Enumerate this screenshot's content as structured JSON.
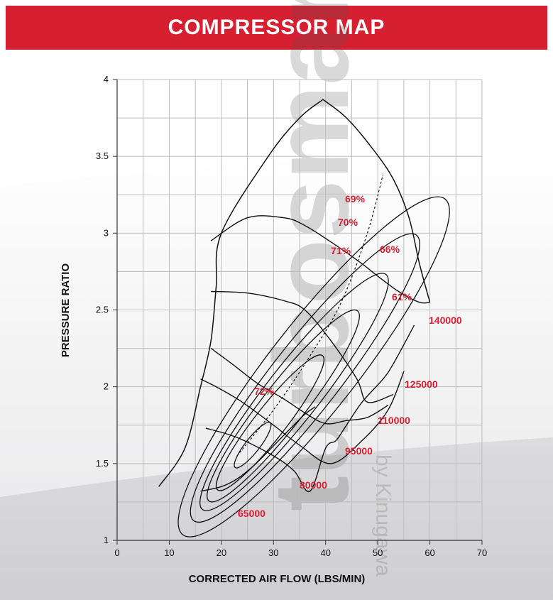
{
  "header": {
    "title": "COMPRESSOR MAP"
  },
  "chart_data": {
    "type": "line",
    "title": "COMPRESSOR MAP",
    "xlabel": "CORRECTED AIR FLOW (LBS/MIN)",
    "ylabel": "PRESSURE RATIO",
    "xlim": [
      0,
      70
    ],
    "ylim": [
      1,
      4
    ],
    "xticks": [
      "0",
      "10",
      "20",
      "30",
      "40",
      "50",
      "60",
      "70"
    ],
    "yticks": [
      "1",
      "1.5",
      "2",
      "2.5",
      "3",
      "3.5",
      "4"
    ],
    "grid": true,
    "watermark": "turbosmart / by Kinugawa",
    "speed_lines": [
      {
        "name": "65000",
        "x": [
          16,
          20,
          23,
          26,
          29,
          33,
          36,
          38
        ],
        "y": [
          1.32,
          1.35,
          1.4,
          1.48,
          1.58,
          1.72,
          1.82,
          1.87
        ]
      },
      {
        "name": "80000",
        "x": [
          17,
          23,
          30,
          34,
          37,
          40,
          42,
          44,
          47,
          51,
          53,
          57
        ],
        "y": [
          1.73,
          1.67,
          1.55,
          1.45,
          1.32,
          1.6,
          1.65,
          1.75,
          1.9,
          2.05,
          2.15,
          2.4
        ]
      },
      {
        "name": "95000",
        "x": [
          16,
          19,
          24,
          30,
          35,
          41,
          47,
          52,
          55
        ],
        "y": [
          2.05,
          2.0,
          1.9,
          1.75,
          1.62,
          1.5,
          1.65,
          1.85,
          2.1
        ]
      },
      {
        "name": "110000",
        "x": [
          18,
          22,
          27,
          32,
          36,
          40,
          44,
          48,
          52
        ],
        "y": [
          2.25,
          2.15,
          2.02,
          1.92,
          1.83,
          1.76,
          1.78,
          1.8,
          1.88
        ]
      },
      {
        "name": "125000",
        "x": [
          18,
          25,
          32,
          36,
          41,
          46,
          48,
          53
        ],
        "y": [
          2.62,
          2.61,
          2.56,
          2.5,
          2.3,
          2.05,
          1.9,
          1.95
        ]
      },
      {
        "name": "140000",
        "x": [
          18,
          25,
          32,
          36,
          42,
          47,
          50,
          54,
          58,
          60
        ],
        "y": [
          2.95,
          3.1,
          3.1,
          3.05,
          2.92,
          2.8,
          2.72,
          2.62,
          2.55,
          2.55
        ]
      }
    ],
    "surge_line": {
      "x": [
        8,
        13,
        16,
        18,
        19,
        20,
        29,
        35,
        39.5
      ],
      "y": [
        1.35,
        1.6,
        2.0,
        2.3,
        2.65,
        3.0,
        3.5,
        3.75,
        3.87
      ]
    },
    "max_flow_line": {
      "x": [
        39.5,
        44,
        49,
        53,
        56,
        58,
        60
      ],
      "y": [
        3.87,
        3.75,
        3.55,
        3.35,
        3.1,
        2.8,
        2.55
      ]
    },
    "efficiency_islands": [
      {
        "label": "72%",
        "level": 72
      },
      {
        "label": "71%",
        "level": 71
      },
      {
        "label": "70%",
        "level": 70
      },
      {
        "label": "69%",
        "level": 69
      },
      {
        "label": "66%",
        "level": 66
      },
      {
        "label": "61%",
        "level": 61
      }
    ],
    "peak_efficiency_line": {
      "x": [
        23,
        30,
        37,
        43,
        48,
        51
      ],
      "y": [
        1.55,
        1.85,
        2.2,
        2.55,
        3.0,
        3.38
      ]
    }
  }
}
